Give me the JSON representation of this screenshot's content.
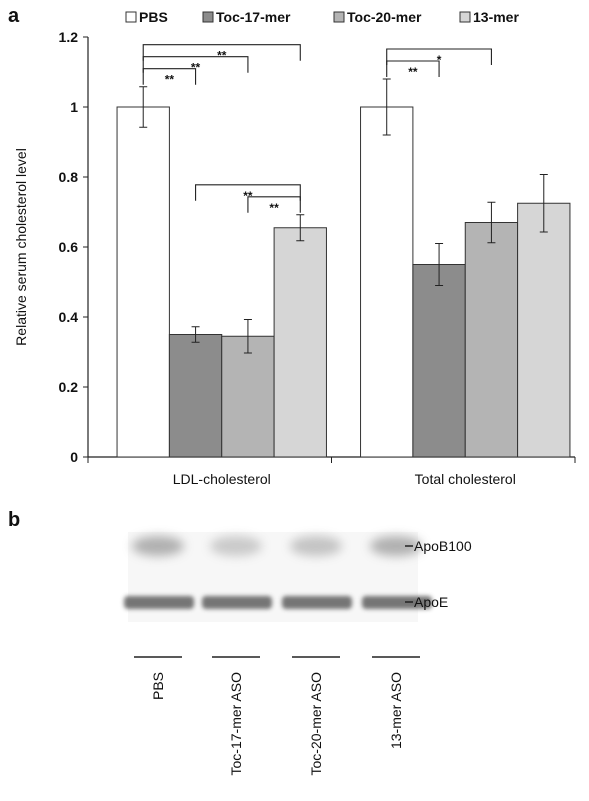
{
  "chart_data": {
    "type": "bar",
    "panel": "a",
    "ylabel": "Relative serum cholesterol level",
    "categories": [
      "LDL-cholesterol",
      "Total cholesterol"
    ],
    "series": [
      {
        "name": "PBS",
        "color": "#ffffff",
        "values": [
          1,
          1
        ],
        "errors": [
          0.058,
          0.08
        ]
      },
      {
        "name": "Toc-17-mer",
        "color": "#8c8c8c",
        "values": [
          0.35,
          0.55
        ],
        "errors": [
          0.022,
          0.06
        ]
      },
      {
        "name": "Toc-20-mer",
        "color": "#b4b4b4",
        "values": [
          0.345,
          0.67
        ],
        "errors": [
          0.048,
          0.058
        ]
      },
      {
        "name": "13-mer",
        "color": "#d6d6d6",
        "values": [
          0.655,
          0.725
        ],
        "errors": [
          0.037,
          0.082
        ]
      }
    ],
    "ylim": [
      0,
      1.2
    ],
    "yticks": [
      0,
      0.2,
      0.4,
      0.6,
      0.8,
      1,
      1.2
    ],
    "significance": [
      {
        "category": "LDL-cholesterol",
        "between": [
          "PBS",
          "Toc-17-mer"
        ],
        "label": "**"
      },
      {
        "category": "LDL-cholesterol",
        "between": [
          "PBS",
          "Toc-20-mer"
        ],
        "label": "**"
      },
      {
        "category": "LDL-cholesterol",
        "between": [
          "PBS",
          "13-mer"
        ],
        "label": "**"
      },
      {
        "category": "LDL-cholesterol",
        "between": [
          "Toc-20-mer",
          "13-mer"
        ],
        "label": "**"
      },
      {
        "category": "LDL-cholesterol",
        "between": [
          "Toc-17-mer",
          "13-mer"
        ],
        "label": "**"
      },
      {
        "category": "Total cholesterol",
        "between": [
          "PBS",
          "Toc-17-mer"
        ],
        "label": "**"
      },
      {
        "category": "Total cholesterol",
        "between": [
          "PBS",
          "Toc-20-mer"
        ],
        "label": "*"
      }
    ]
  },
  "blot": {
    "panel": "b",
    "bands": [
      "ApoB100",
      "ApoE"
    ],
    "lanes": [
      "PBS",
      "Toc-17-mer ASO",
      "Toc-20-mer ASO",
      "13-mer ASO"
    ]
  }
}
